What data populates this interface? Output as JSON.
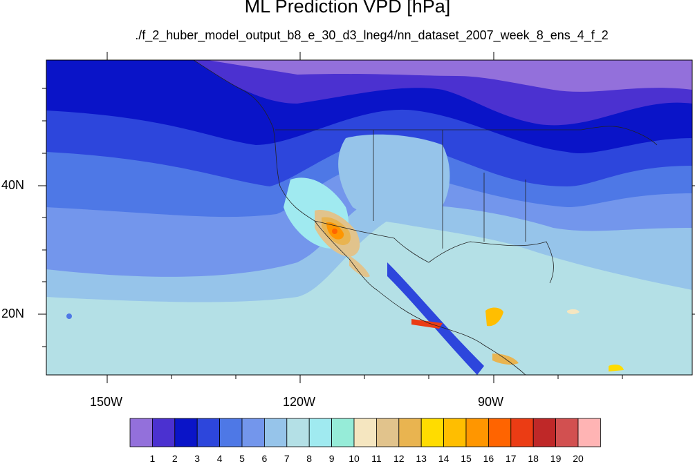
{
  "title": "ML Prediction VPD [hPa]",
  "subtitle": "./f_2_huber_model_output_b8_e_30_d3_lneg4/nn_dataset_2007_week_8_ens_4_f_2",
  "x_axis": {
    "tick_labels": [
      "150W",
      "120W",
      "90W"
    ]
  },
  "y_axis": {
    "tick_labels": [
      "40N",
      "20N"
    ]
  },
  "colorbar": {
    "labels": [
      "1",
      "2",
      "3",
      "4",
      "5",
      "6",
      "7",
      "8",
      "9",
      "10",
      "11",
      "12",
      "13",
      "14",
      "15",
      "16",
      "17",
      "18",
      "19",
      "20"
    ],
    "colors": [
      "#9370db",
      "#4b31d0",
      "#0a14c8",
      "#2d46dc",
      "#4e78e6",
      "#7396ec",
      "#96c4ea",
      "#b4e0e6",
      "#a0eaf0",
      "#96ecd8",
      "#f5e6c0",
      "#e1c38c",
      "#e9b450",
      "#ffdc00",
      "#ffbe00",
      "#ff9600",
      "#ff6400",
      "#eb3c14",
      "#bf2828",
      "#d25050",
      "#ffb4b4"
    ]
  }
}
